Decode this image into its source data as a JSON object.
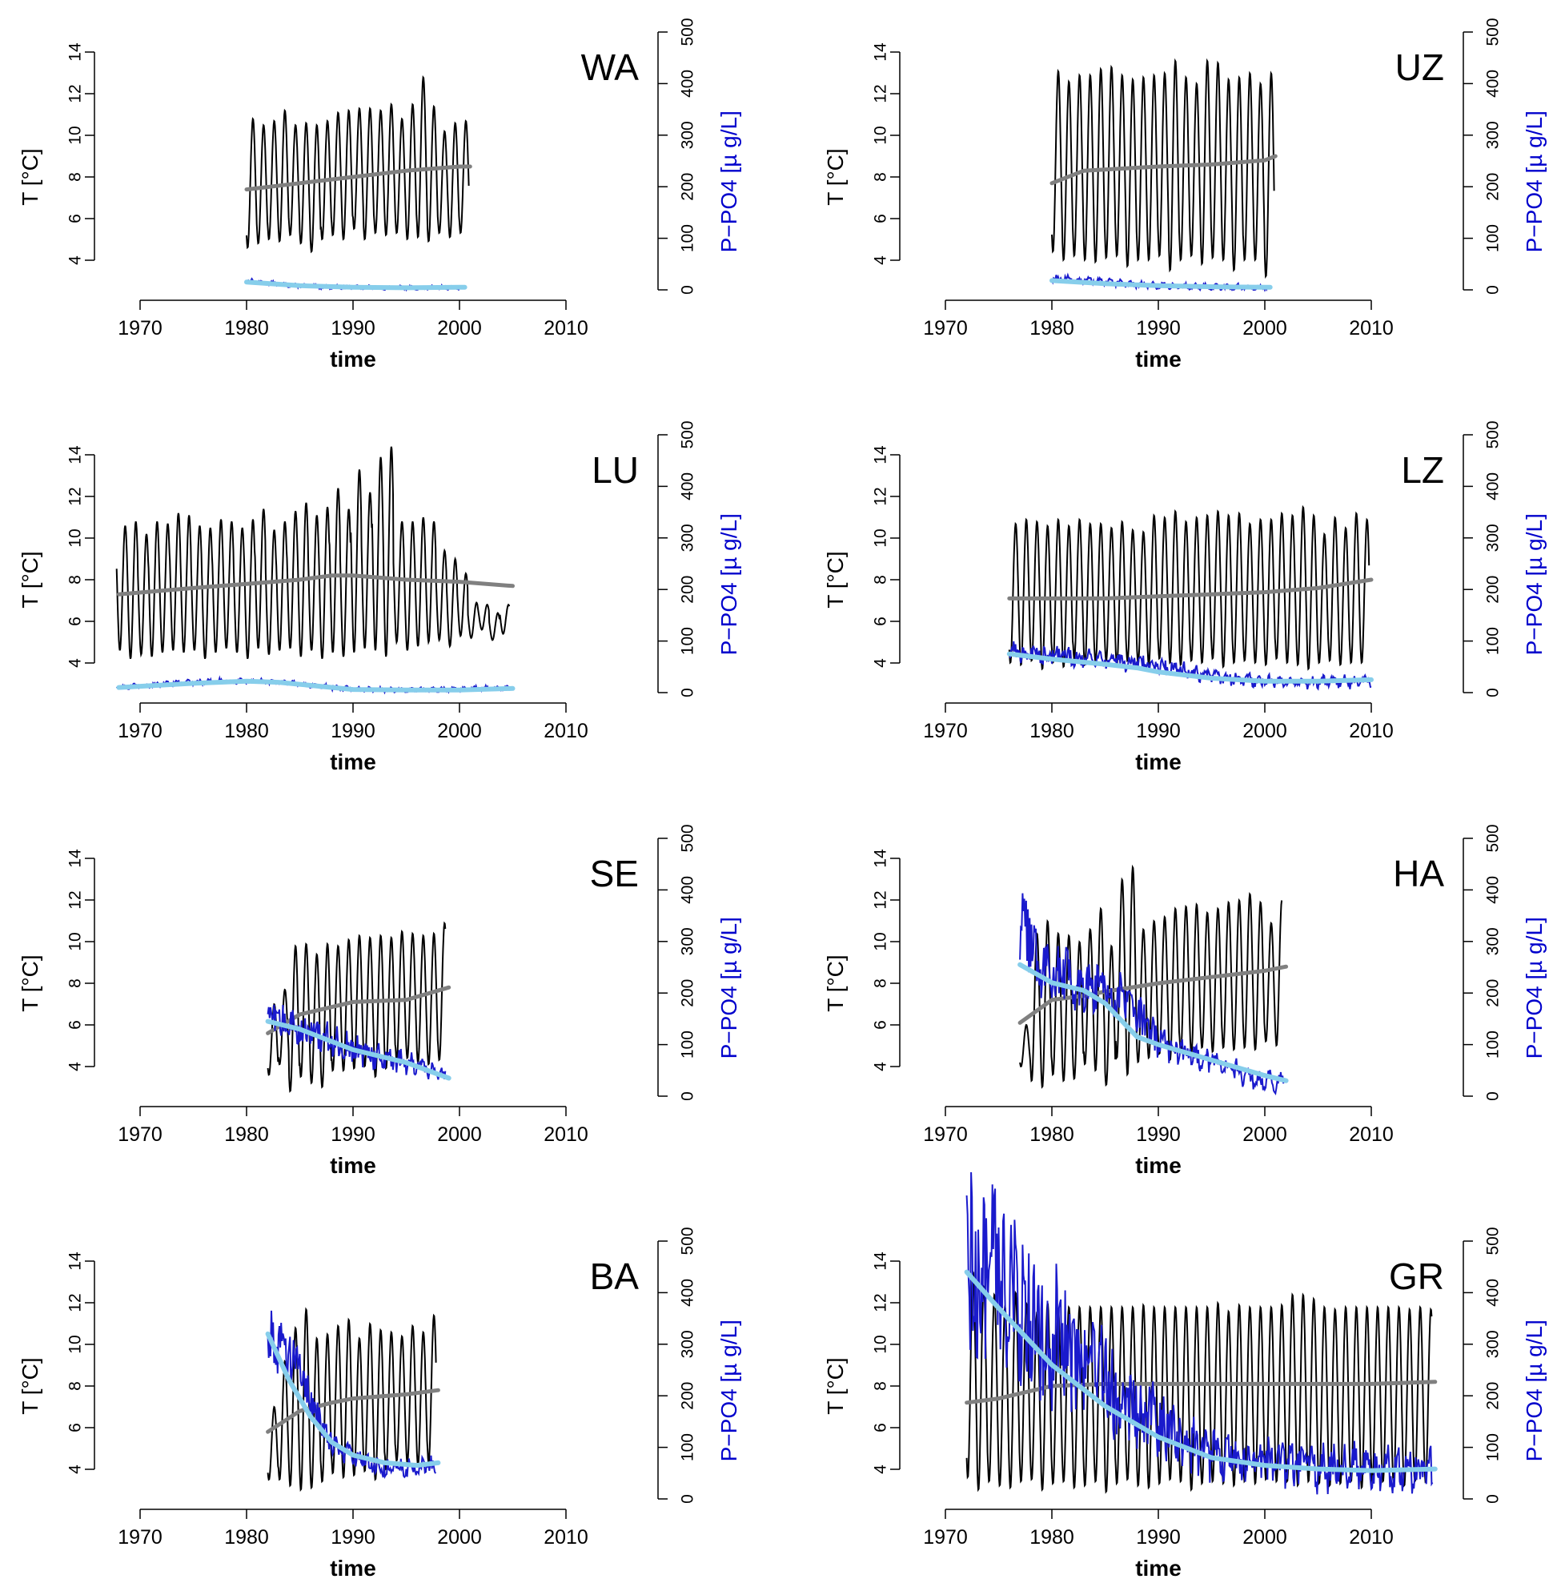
{
  "colors": {
    "temp_raw": "#000000",
    "temp_trend": "#808080",
    "po4_raw": "#1a1acc",
    "po4_trend": "#87ceeb",
    "po4_axis_label": "#0000cc"
  },
  "axes": {
    "x_ticks": [
      "1970",
      "1980",
      "1990",
      "2000",
      "2010"
    ],
    "x_tick_values": [
      1970,
      1980,
      1990,
      2000,
      2010
    ],
    "y_ticks": [
      "4",
      "6",
      "8",
      "10",
      "12",
      "14"
    ],
    "y_tick_values": [
      4,
      6,
      8,
      10,
      12,
      14
    ],
    "y2_ticks": [
      "0",
      "100",
      "200",
      "300",
      "400",
      "500"
    ],
    "y2_tick_values": [
      0,
      100,
      200,
      300,
      400,
      500
    ],
    "xlabel": "time",
    "ylabel": "T [°C]",
    "y2label": "P−PO4 [µ g/L]"
  },
  "chart_data": [
    {
      "type": "line",
      "lake": "WA",
      "title": "WA",
      "xlabel": "time",
      "ylabel": "T [°C]",
      "y2label": "P−PO4 [µ g/L]",
      "xlim": [
        1970,
        2010
      ],
      "ylim": [
        4,
        14
      ],
      "y2lim": [
        0,
        500
      ],
      "temp": {
        "start": 1980.0,
        "end": 2000.9,
        "mean": 7.9,
        "amp": 2.8,
        "peaks": [
          10.8,
          10.5,
          10.7,
          11.2,
          10.5,
          10.6,
          10.5,
          10.7,
          11.1,
          11.2,
          11.3,
          11.3,
          11.2,
          11.5,
          10.8,
          11.5,
          12.8,
          11.4,
          10.2,
          10.6,
          10.7
        ],
        "mins": [
          4.6,
          4.8,
          5.0,
          4.9,
          5.2,
          4.8,
          4.4,
          5.0,
          5.2,
          5.0,
          5.5,
          5.0,
          5.3,
          5.2,
          5.3,
          5.0,
          5.1,
          4.9,
          5.3,
          5.1,
          5.3
        ]
      },
      "temp_trend": {
        "x": [
          1980,
          1985,
          1990,
          1995,
          2000,
          2001
        ],
        "y": [
          7.4,
          7.7,
          8.0,
          8.3,
          8.5,
          8.5
        ]
      },
      "po4": {
        "start": 1980.0,
        "end": 2000.5,
        "base": [
          18,
          10,
          6,
          5,
          4,
          4,
          5
        ],
        "noise": 6
      },
      "po4_trend": {
        "x": [
          1980,
          1985,
          1990,
          1995,
          2000,
          2000.5
        ],
        "y": [
          15,
          8,
          5,
          4,
          5,
          5
        ]
      }
    },
    {
      "type": "line",
      "lake": "UZ",
      "title": "UZ",
      "xlabel": "time",
      "ylabel": "T [°C]",
      "y2label": "P−PO4 [µ g/L]",
      "xlim": [
        1970,
        2010
      ],
      "ylim": [
        4,
        14
      ],
      "y2lim": [
        0,
        500
      ],
      "temp": {
        "start": 1980.0,
        "end": 2000.9,
        "mean": 8.4,
        "amp": 4.4,
        "peaks": [
          13.1,
          12.6,
          12.9,
          12.9,
          13.2,
          13.3,
          12.9,
          12.7,
          12.8,
          12.9,
          13.0,
          13.6,
          12.8,
          12.5,
          13.6,
          13.5,
          12.7,
          12.8,
          13.0,
          12.5,
          13.0
        ],
        "mins": [
          4.4,
          4.0,
          4.2,
          4.0,
          3.9,
          4.1,
          4.2,
          3.7,
          4.0,
          4.0,
          4.2,
          3.5,
          4.0,
          4.2,
          3.8,
          4.1,
          4.0,
          3.5,
          4.0,
          4.0,
          3.2
        ]
      },
      "temp_trend": {
        "x": [
          1980,
          1983,
          1990,
          1995,
          2000,
          2001
        ],
        "y": [
          7.7,
          8.3,
          8.5,
          8.6,
          8.8,
          9.0
        ]
      },
      "po4": {
        "start": 1980.0,
        "end": 2000.5,
        "base": [
          22,
          18,
          12,
          8,
          6,
          5,
          5
        ],
        "noise": 10
      },
      "po4_trend": {
        "x": [
          1980,
          1985,
          1990,
          1995,
          2000,
          2000.5
        ],
        "y": [
          18,
          12,
          8,
          6,
          5,
          5
        ]
      }
    },
    {
      "type": "line",
      "lake": "LU",
      "title": "LU",
      "xlabel": "time",
      "ylabel": "T [°C]",
      "y2label": "P−PO4 [µ g/L]",
      "xlim": [
        1970,
        2010
      ],
      "ylim": [
        4,
        14
      ],
      "y2lim": [
        0,
        500
      ],
      "temp": {
        "start": 1967.8,
        "end": 2004.7,
        "mean": 7.6,
        "amp": 3.0,
        "peaks": [
          10.6,
          10.8,
          10.2,
          10.8,
          10.7,
          11.2,
          11.1,
          10.6,
          10.5,
          10.9,
          10.8,
          10.5,
          10.9,
          11.4,
          10.4,
          10.8,
          11.3,
          11.7,
          11.1,
          11.5,
          12.4,
          11.4,
          13.3,
          12.2,
          13.9,
          14.4,
          10.8,
          10.8,
          11.0,
          10.8,
          9.4,
          9.0,
          8.3,
          6.9,
          6.8,
          6.4,
          6.8
        ],
        "mins": [
          4.6,
          4.2,
          4.4,
          4.3,
          4.5,
          4.6,
          4.5,
          4.6,
          4.2,
          4.5,
          4.7,
          4.5,
          4.2,
          4.7,
          4.4,
          4.6,
          4.7,
          4.3,
          4.6,
          4.2,
          4.5,
          4.3,
          4.5,
          4.7,
          4.6,
          4.3,
          5.0,
          4.6,
          4.8,
          5.0,
          5.1,
          4.8,
          5.3,
          5.2,
          5.6,
          5.1,
          5.4
        ]
      },
      "temp_trend": {
        "x": [
          1968,
          1975,
          1980,
          1985,
          1988,
          1990,
          1995,
          2000,
          2005
        ],
        "y": [
          7.3,
          7.6,
          7.8,
          8.0,
          8.2,
          8.2,
          8.0,
          7.9,
          7.7
        ]
      },
      "po4": {
        "start": 1967.8,
        "end": 2004.7,
        "base": [
          10,
          15,
          20,
          22,
          22,
          18,
          10,
          6,
          5,
          6,
          8,
          8
        ],
        "noise": 7
      },
      "po4_trend": {
        "x": [
          1968,
          1975,
          1980,
          1983,
          1990,
          1995,
          2000,
          2005
        ],
        "y": [
          10,
          18,
          22,
          20,
          6,
          5,
          5,
          8
        ]
      }
    },
    {
      "type": "line",
      "lake": "LZ",
      "title": "LZ",
      "xlabel": "time",
      "ylabel": "T [°C]",
      "y2label": "P−PO4 [µ g/L]",
      "xlim": [
        1970,
        2010
      ],
      "ylim": [
        4,
        14
      ],
      "y2lim": [
        0,
        500
      ],
      "temp": {
        "start": 1976.0,
        "end": 2009.8,
        "mean": 7.4,
        "amp": 3.4,
        "peaks": [
          10.7,
          10.9,
          10.8,
          10.6,
          10.9,
          10.6,
          10.9,
          10.7,
          10.7,
          10.5,
          10.8,
          10.4,
          10.3,
          11.1,
          11.0,
          11.3,
          10.8,
          11.0,
          11.1,
          11.3,
          11.1,
          11.2,
          10.7,
          10.9,
          10.9,
          11.2,
          11.1,
          11.5,
          11.1,
          10.2,
          11.0,
          10.5,
          11.2,
          10.9
        ],
        "mins": [
          4.0,
          3.9,
          4.1,
          3.7,
          4.0,
          3.8,
          4.2,
          3.9,
          4.0,
          4.1,
          3.9,
          4.1,
          4.0,
          3.9,
          4.2,
          4.0,
          3.9,
          4.1,
          4.0,
          4.2,
          3.8,
          4.0,
          4.1,
          4.0,
          3.9,
          4.2,
          4.0,
          3.9,
          3.7,
          4.0,
          4.1,
          3.9,
          4.0,
          4.0
        ]
      },
      "temp_trend": {
        "x": [
          1976,
          1985,
          1990,
          1995,
          2000,
          2005,
          2010
        ],
        "y": [
          7.1,
          7.1,
          7.2,
          7.3,
          7.4,
          7.6,
          8.0
        ]
      },
      "po4": {
        "start": 1976.0,
        "end": 2010.0,
        "base": [
          80,
          75,
          70,
          68,
          60,
          55,
          45,
          35,
          28,
          22,
          20,
          20,
          22,
          22
        ],
        "noise": 18
      },
      "po4_trend": {
        "x": [
          1976,
          1980,
          1985,
          1988,
          1990,
          1995,
          2000,
          2005,
          2010
        ],
        "y": [
          75,
          65,
          55,
          48,
          40,
          28,
          22,
          22,
          25
        ]
      }
    },
    {
      "type": "line",
      "lake": "SE",
      "title": "SE",
      "xlabel": "time",
      "ylabel": "T [°C]",
      "y2label": "P−PO4 [µ g/L]",
      "xlim": [
        1970,
        2010
      ],
      "ylim": [
        4,
        14
      ],
      "y2lim": [
        0,
        500
      ],
      "temp": {
        "start": 1982.0,
        "end": 1998.7,
        "mean": 6.8,
        "amp": 2.8,
        "peaks": [
          7.0,
          7.7,
          9.8,
          9.9,
          9.4,
          9.9,
          9.8,
          10.1,
          10.3,
          10.2,
          10.3,
          10.2,
          10.5,
          10.4,
          10.3,
          10.4,
          10.9
        ],
        "mins": [
          3.6,
          4.1,
          2.8,
          3.5,
          3.2,
          3.0,
          3.8,
          3.8,
          3.9,
          4.0,
          3.5,
          3.9,
          4.3,
          4.4,
          4.2,
          4.1,
          4.3
        ]
      },
      "temp_trend": {
        "x": [
          1982,
          1985,
          1990,
          1995,
          1999
        ],
        "y": [
          5.6,
          6.5,
          7.1,
          7.2,
          7.8
        ]
      },
      "po4": {
        "start": 1982.0,
        "end": 1998.7,
        "base": [
          150,
          140,
          130,
          120,
          100,
          90,
          80,
          70,
          60,
          50,
          40
        ],
        "noise": 22
      },
      "po4_trend": {
        "x": [
          1982,
          1985,
          1990,
          1995,
          1999
        ],
        "y": [
          145,
          130,
          90,
          65,
          35
        ]
      }
    },
    {
      "type": "line",
      "lake": "HA",
      "title": "HA",
      "xlabel": "time",
      "ylabel": "T [°C]",
      "y2label": "P−PO4 [µ g/L]",
      "xlim": [
        1970,
        2010
      ],
      "ylim": [
        4,
        14
      ],
      "y2lim": [
        0,
        500
      ],
      "temp": {
        "start": 1977.0,
        "end": 2001.6,
        "mean": 7.4,
        "amp": 3.2,
        "peaks": [
          6.0,
          10.4,
          11.0,
          10.4,
          10.3,
          10.0,
          10.6,
          11.6,
          9.8,
          13.0,
          13.6,
          10.6,
          11.0,
          11.2,
          11.6,
          11.7,
          11.8,
          11.4,
          11.6,
          11.9,
          12.0,
          12.3,
          11.9,
          10.9,
          12.0
        ],
        "mins": [
          4.0,
          3.3,
          3.0,
          3.6,
          3.3,
          3.4,
          4.1,
          3.8,
          3.1,
          4.4,
          3.6,
          4.2,
          4.4,
          4.6,
          4.3,
          4.7,
          4.6,
          4.9,
          4.7,
          4.9,
          4.8,
          4.9,
          4.8,
          5.2,
          5.0
        ]
      },
      "temp_trend": {
        "x": [
          1977,
          1980,
          1983,
          1985,
          1990,
          1995,
          2000,
          2002
        ],
        "y": [
          6.1,
          7.2,
          7.4,
          7.6,
          8.0,
          8.3,
          8.6,
          8.8
        ]
      },
      "po4": {
        "start": 1977.0,
        "end": 2001.8,
        "base": [
          330,
          260,
          240,
          220,
          220,
          200,
          170,
          120,
          90,
          80,
          70,
          60,
          40,
          30,
          25
        ],
        "noise": 25
      },
      "po4_trend": {
        "x": [
          1977,
          1980,
          1983,
          1985,
          1988,
          1990,
          1995,
          2000,
          2002
        ],
        "y": [
          255,
          220,
          205,
          180,
          115,
          100,
          70,
          40,
          30
        ]
      }
    },
    {
      "type": "line",
      "lake": "BA",
      "title": "BA",
      "xlabel": "time",
      "ylabel": "T [°C]",
      "y2label": "P−PO4 [µ g/L]",
      "xlim": [
        1970,
        2010
      ],
      "ylim": [
        4,
        14
      ],
      "y2lim": [
        0,
        500
      ],
      "temp": {
        "start": 1982.0,
        "end": 1997.8,
        "mean": 6.8,
        "amp": 2.8,
        "peaks": [
          7.0,
          9.2,
          10.8,
          11.7,
          10.3,
          10.5,
          10.9,
          11.2,
          10.3,
          11.0,
          10.7,
          10.6,
          10.4,
          10.9,
          10.6,
          11.4
        ],
        "mins": [
          3.5,
          3.5,
          3.2,
          3.0,
          3.1,
          3.4,
          3.8,
          3.6,
          3.7,
          3.9,
          3.5,
          4.0,
          4.4,
          4.3,
          4.2,
          4.3
        ]
      },
      "temp_trend": {
        "x": [
          1982,
          1985,
          1988,
          1990,
          1995,
          1998
        ],
        "y": [
          5.8,
          6.8,
          7.2,
          7.4,
          7.6,
          7.8
        ]
      },
      "po4": {
        "start": 1982.0,
        "end": 1997.8,
        "base": [
          320,
          300,
          250,
          180,
          120,
          90,
          75,
          65,
          60,
          60,
          62,
          65
        ],
        "noise": 20
      },
      "po4_trend": {
        "x": [
          1982,
          1984,
          1986,
          1988,
          1990,
          1993,
          1996,
          1998
        ],
        "y": [
          320,
          230,
          160,
          110,
          85,
          70,
          65,
          70
        ]
      }
    },
    {
      "type": "line",
      "lake": "GR",
      "title": "GR",
      "xlabel": "time",
      "ylabel": "T [°C]",
      "y2label": "P−PO4 [µ g/L]",
      "xlim": [
        1970,
        2010
      ],
      "ylim": [
        4,
        14
      ],
      "y2lim": [
        0,
        500
      ],
      "temp": {
        "start": 1972.0,
        "end": 2015.7,
        "mean": 7.8,
        "amp": 4.0,
        "peaks": [
          13.5,
          12.8,
          12.4,
          11.8,
          12.5,
          12.0,
          11.5,
          12.0,
          11.6,
          11.8,
          11.8,
          11.8,
          11.8,
          11.8,
          11.8,
          11.8,
          11.9,
          11.8,
          11.8,
          11.8,
          11.8,
          11.8,
          11.8,
          12.0,
          11.6,
          11.9,
          11.8,
          11.8,
          11.8,
          11.9,
          12.4,
          12.4,
          12.2,
          11.8,
          11.7,
          11.8,
          11.8,
          11.8,
          11.8,
          11.8,
          11.8,
          11.7,
          11.8,
          11.7
        ],
        "mins": [
          3.6,
          3.0,
          3.4,
          3.2,
          3.1,
          3.4,
          3.5,
          3.0,
          3.3,
          3.4,
          3.1,
          3.2,
          3.4,
          2.9,
          3.3,
          3.5,
          3.2,
          3.1,
          3.3,
          3.5,
          3.4,
          3.0,
          3.3,
          3.4,
          3.3,
          3.2,
          3.4,
          3.3,
          3.5,
          3.4,
          3.4,
          3.2,
          3.4,
          3.3,
          3.2,
          3.3,
          3.4,
          3.1,
          3.4,
          3.4,
          3.3,
          3.2,
          3.4,
          3.4
        ]
      },
      "temp_trend": {
        "x": [
          1972,
          1975,
          1980,
          1985,
          1990,
          2000,
          2010,
          2016
        ],
        "y": [
          7.2,
          7.4,
          8.0,
          8.1,
          8.1,
          8.1,
          8.1,
          8.2
        ]
      },
      "po4": {
        "start": 1972.0,
        "end": 2015.8,
        "base": [
          460,
          430,
          380,
          320,
          280,
          230,
          180,
          140,
          110,
          90,
          75,
          70,
          65,
          60,
          60,
          60,
          58,
          58
        ],
        "noise": 45
      },
      "po4_trend": {
        "x": [
          1972,
          1975,
          1980,
          1985,
          1990,
          1995,
          2000,
          2005,
          2010,
          2016
        ],
        "y": [
          440,
          370,
          260,
          180,
          120,
          80,
          65,
          58,
          55,
          58
        ]
      }
    }
  ]
}
